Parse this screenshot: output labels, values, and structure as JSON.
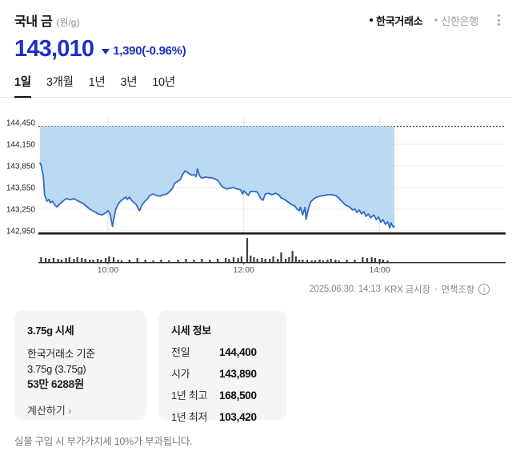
{
  "header": {
    "title": "국내 금",
    "unit_label": "(원/g)",
    "sources": [
      {
        "label": "한국거래소",
        "active": true
      },
      {
        "label": "신한은행",
        "active": false
      }
    ]
  },
  "price": {
    "current": "143,010",
    "change": "1,390",
    "change_pct": "(-0.96%)",
    "direction": "down",
    "accent_color": "#1d30c2"
  },
  "tabs": [
    {
      "label": "1일",
      "active": true
    },
    {
      "label": "3개월",
      "active": false
    },
    {
      "label": "1년",
      "active": false
    },
    {
      "label": "3년",
      "active": false
    },
    {
      "label": "10년",
      "active": false
    }
  ],
  "chart_data": {
    "type": "area",
    "title": "국내 금 1일 가격 추이",
    "unit": "원/g",
    "session_start": "09:00",
    "last_trade": "14:13",
    "prev_close": 144400,
    "open": 143890,
    "last": 143010,
    "y_ticks": [
      144450,
      144150,
      143850,
      143550,
      143250,
      142950
    ],
    "y_range": [
      142950,
      144450
    ],
    "x_ticks": [
      {
        "label": "10:00",
        "min": 60
      },
      {
        "label": "12:00",
        "min": 180
      },
      {
        "label": "14:00",
        "min": 300
      }
    ],
    "grid": true,
    "colors": {
      "line": "#2e6ac6",
      "fill": "#bcd9f4",
      "prev_close_line": "#1a1a1a",
      "axis": "#1b1b1b",
      "volume_bar": "#3c3c3c",
      "grid_h": "#ececec",
      "grid_v": "#e2e2e2"
    },
    "points": [
      [
        0,
        143890
      ],
      [
        1,
        143860
      ],
      [
        3,
        143700
      ],
      [
        4,
        143450
      ],
      [
        6,
        143360
      ],
      [
        8,
        143385
      ],
      [
        9,
        143340
      ],
      [
        11,
        143360
      ],
      [
        13,
        143310
      ],
      [
        15,
        143280
      ],
      [
        18,
        143330
      ],
      [
        21,
        143370
      ],
      [
        23,
        143395
      ],
      [
        27,
        143380
      ],
      [
        30,
        143395
      ],
      [
        34,
        143360
      ],
      [
        38,
        143330
      ],
      [
        41,
        143290
      ],
      [
        44,
        143250
      ],
      [
        48,
        143215
      ],
      [
        52,
        143180
      ],
      [
        55,
        143170
      ],
      [
        58,
        143200
      ],
      [
        60,
        143230
      ],
      [
        62,
        143180
      ],
      [
        64,
        143010
      ],
      [
        65,
        143100
      ],
      [
        67,
        143250
      ],
      [
        69,
        143320
      ],
      [
        71,
        143360
      ],
      [
        74,
        143395
      ],
      [
        76,
        143420
      ],
      [
        77,
        143385
      ],
      [
        79,
        143415
      ],
      [
        81,
        143370
      ],
      [
        83,
        143340
      ],
      [
        85,
        143315
      ],
      [
        87,
        143250
      ],
      [
        88,
        143230
      ],
      [
        90,
        143305
      ],
      [
        92,
        143350
      ],
      [
        95,
        143395
      ],
      [
        97,
        143440
      ],
      [
        100,
        143460
      ],
      [
        103,
        143440
      ],
      [
        106,
        143430
      ],
      [
        109,
        143450
      ],
      [
        112,
        143460
      ],
      [
        114,
        143485
      ],
      [
        117,
        143540
      ],
      [
        119,
        143610
      ],
      [
        121,
        143630
      ],
      [
        124,
        143660
      ],
      [
        126,
        143730
      ],
      [
        128,
        143780
      ],
      [
        130,
        143760
      ],
      [
        132,
        143740
      ],
      [
        134,
        143720
      ],
      [
        136,
        143730
      ],
      [
        138,
        143700
      ],
      [
        139,
        143810
      ],
      [
        141,
        143710
      ],
      [
        143,
        143680
      ],
      [
        146,
        143695
      ],
      [
        149,
        143685
      ],
      [
        152,
        143685
      ],
      [
        154,
        143670
      ],
      [
        157,
        143650
      ],
      [
        160,
        143580
      ],
      [
        162,
        143550
      ],
      [
        165,
        143530
      ],
      [
        168,
        143540
      ],
      [
        171,
        143550
      ],
      [
        174,
        143530
      ],
      [
        177,
        143520
      ],
      [
        179,
        143460
      ],
      [
        180,
        143505
      ],
      [
        182,
        143470
      ],
      [
        184,
        143440
      ],
      [
        186,
        143495
      ],
      [
        189,
        143495
      ],
      [
        192,
        143485
      ],
      [
        195,
        143395
      ],
      [
        197,
        143375
      ],
      [
        199,
        143460
      ],
      [
        202,
        143470
      ],
      [
        205,
        143450
      ],
      [
        208,
        143470
      ],
      [
        211,
        143450
      ],
      [
        213,
        143405
      ],
      [
        216,
        143385
      ],
      [
        219,
        143350
      ],
      [
        222,
        143315
      ],
      [
        225,
        143295
      ],
      [
        227,
        143250
      ],
      [
        229,
        143230
      ],
      [
        230,
        143275
      ],
      [
        232,
        143170
      ],
      [
        234,
        143275
      ],
      [
        235,
        143110
      ],
      [
        237,
        143250
      ],
      [
        239,
        143350
      ],
      [
        242,
        143395
      ],
      [
        244,
        143415
      ],
      [
        247,
        143430
      ],
      [
        251,
        143440
      ],
      [
        254,
        143450
      ],
      [
        258,
        143450
      ],
      [
        261,
        143440
      ],
      [
        264,
        143405
      ],
      [
        267,
        143350
      ],
      [
        270,
        143305
      ],
      [
        273,
        143285
      ],
      [
        276,
        143240
      ],
      [
        278,
        143250
      ],
      [
        280,
        143205
      ],
      [
        282,
        143240
      ],
      [
        284,
        143185
      ],
      [
        286,
        143215
      ],
      [
        288,
        143150
      ],
      [
        290,
        143185
      ],
      [
        292,
        143130
      ],
      [
        295,
        143170
      ],
      [
        297,
        143105
      ],
      [
        299,
        143140
      ],
      [
        301,
        143070
      ],
      [
        303,
        143105
      ],
      [
        305,
        143040
      ],
      [
        307,
        143075
      ],
      [
        309,
        142990
      ],
      [
        310,
        143060
      ],
      [
        312,
        143000
      ],
      [
        313,
        143010
      ]
    ],
    "volume_note": "unlabeled relative volume, [minute, height]",
    "volume": [
      [
        1,
        6
      ],
      [
        5,
        5
      ],
      [
        8,
        4
      ],
      [
        12,
        5
      ],
      [
        16,
        4
      ],
      [
        19,
        3
      ],
      [
        23,
        5
      ],
      [
        26,
        6
      ],
      [
        30,
        4
      ],
      [
        33,
        6
      ],
      [
        37,
        5
      ],
      [
        40,
        4
      ],
      [
        44,
        3
      ],
      [
        47,
        3
      ],
      [
        51,
        4
      ],
      [
        54,
        3
      ],
      [
        58,
        5
      ],
      [
        61,
        7
      ],
      [
        65,
        6
      ],
      [
        69,
        3
      ],
      [
        72,
        2
      ],
      [
        79,
        3
      ],
      [
        86,
        5
      ],
      [
        93,
        3
      ],
      [
        100,
        2
      ],
      [
        107,
        3
      ],
      [
        114,
        2
      ],
      [
        122,
        3
      ],
      [
        129,
        4
      ],
      [
        136,
        3
      ],
      [
        143,
        4
      ],
      [
        150,
        3
      ],
      [
        157,
        4
      ],
      [
        164,
        5
      ],
      [
        167,
        4
      ],
      [
        171,
        6
      ],
      [
        175,
        5
      ],
      [
        178,
        7
      ],
      [
        183,
        30
      ],
      [
        186,
        8
      ],
      [
        189,
        6
      ],
      [
        192,
        4
      ],
      [
        196,
        5
      ],
      [
        199,
        4
      ],
      [
        203,
        4
      ],
      [
        206,
        7
      ],
      [
        210,
        4
      ],
      [
        213,
        12
      ],
      [
        217,
        4
      ],
      [
        220,
        6
      ],
      [
        223,
        14
      ],
      [
        226,
        7
      ],
      [
        229,
        3
      ],
      [
        232,
        3
      ],
      [
        236,
        3
      ],
      [
        240,
        2
      ],
      [
        243,
        2
      ],
      [
        247,
        3
      ],
      [
        250,
        2
      ],
      [
        254,
        3
      ],
      [
        257,
        4
      ],
      [
        261,
        3
      ],
      [
        264,
        2
      ],
      [
        271,
        3
      ],
      [
        278,
        3
      ],
      [
        285,
        6
      ],
      [
        289,
        5
      ],
      [
        293,
        6
      ],
      [
        296,
        5
      ],
      [
        300,
        4
      ],
      [
        303,
        3
      ],
      [
        307,
        2
      ]
    ]
  },
  "meta": {
    "datetime": "2025.06.30. 14:13",
    "market": "KRX 금시장",
    "divider": "·",
    "disclaimer_label": "면책조항",
    "info_icon_glyph": "i"
  },
  "cards": {
    "unit_card": {
      "title": "3.75g 시세",
      "line1": "한국거래소 기준",
      "line2": "3.75g (3.75g)",
      "price": "53만 6288원",
      "link_label": "계산하기",
      "link_chevron": "›"
    },
    "info_card": {
      "title": "시세 정보",
      "rows": [
        {
          "label": "전일",
          "value": "144,400"
        },
        {
          "label": "시가",
          "value": "143,890"
        },
        {
          "label": "1년 최고",
          "value": "168,500"
        },
        {
          "label": "1년 최저",
          "value": "103,420"
        }
      ]
    }
  },
  "footer": {
    "note": "실물 구입 시 부가가치세 10%가 부과됩니다."
  }
}
